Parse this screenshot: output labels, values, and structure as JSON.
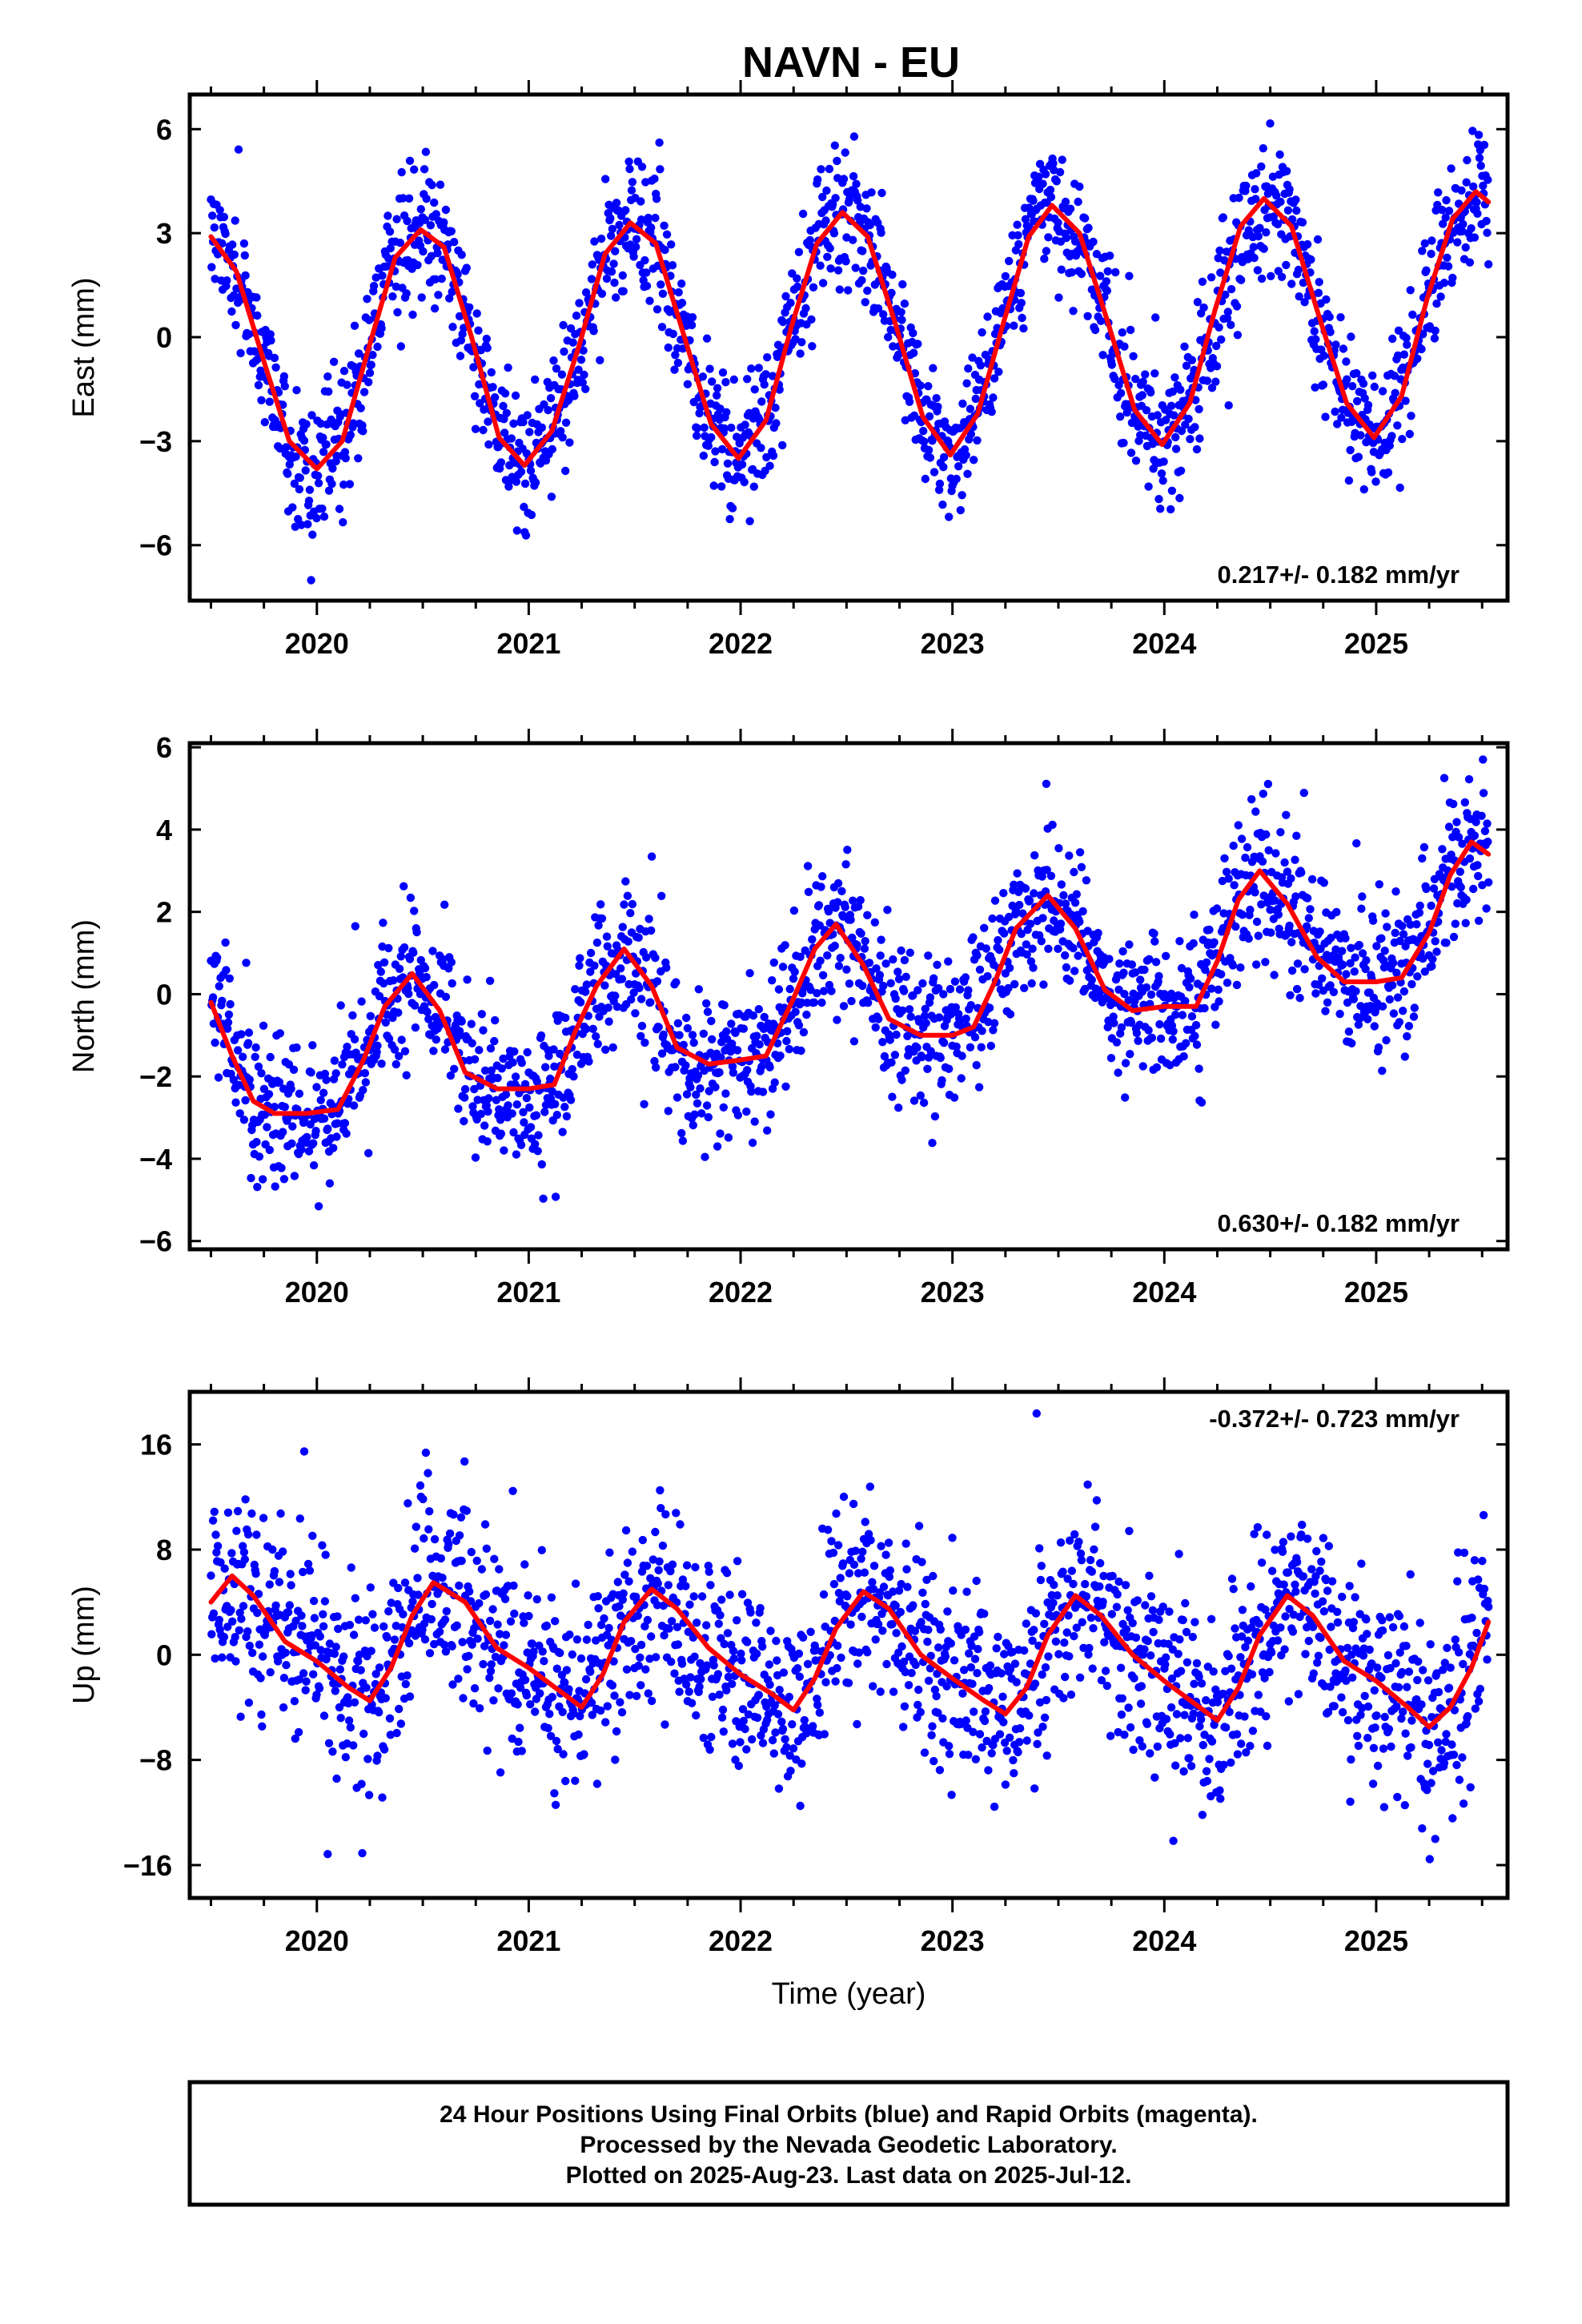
{
  "title": "NAVN - EU",
  "footer": {
    "lines": [
      "24 Hour Positions Using Final Orbits (blue) and Rapid Orbits (magenta).",
      "Processed by the Nevada Geodetic Laboratory.",
      "Plotted on 2025-Aug-23. Last data on 2025-Jul-12."
    ]
  },
  "colors": {
    "points": "#0000ff",
    "fit": "#ff0000",
    "frame": "#000000"
  },
  "chart_data": [
    {
      "type": "scatter",
      "ylabel": "East (mm)",
      "xlabel": "",
      "xlim": [
        2019.4,
        2025.62
      ],
      "ylim": [
        -7.6,
        7.0
      ],
      "yticks": [
        -6,
        -3,
        0,
        3,
        6
      ],
      "yticklabels": [
        "−6",
        "−3",
        "0",
        "3",
        "6"
      ],
      "xticks": [
        2020,
        2021,
        2022,
        2023,
        2024,
        2025
      ],
      "xticklabels": [
        "2020",
        "2021",
        "2022",
        "2023",
        "2024",
        "2025"
      ],
      "trend_text": "0.217+/- 0.182 mm/yr",
      "trend_position": "bottom-right",
      "x_range": [
        2019.5,
        2025.53
      ],
      "noise_sd": 0.95,
      "fit": {
        "name": "model",
        "x": [
          2019.5,
          2019.62,
          2019.75,
          2019.87,
          2020.0,
          2020.12,
          2020.25,
          2020.37,
          2020.49,
          2020.6,
          2020.73,
          2020.86,
          2020.98,
          2021.11,
          2021.24,
          2021.36,
          2021.48,
          2021.6,
          2021.73,
          2021.86,
          2021.99,
          2022.12,
          2022.24,
          2022.36,
          2022.48,
          2022.6,
          2022.73,
          2022.86,
          2022.99,
          2023.12,
          2023.24,
          2023.36,
          2023.47,
          2023.6,
          2023.73,
          2023.86,
          2023.99,
          2024.12,
          2024.24,
          2024.36,
          2024.47,
          2024.6,
          2024.73,
          2024.86,
          2024.99,
          2025.12,
          2025.24,
          2025.36,
          2025.47,
          2025.53
        ],
        "y": [
          2.9,
          1.9,
          -0.7,
          -3.0,
          -3.8,
          -3.0,
          -0.2,
          2.3,
          3.1,
          2.6,
          0.0,
          -2.9,
          -3.7,
          -2.7,
          -0.2,
          2.4,
          3.3,
          2.7,
          0.1,
          -2.5,
          -3.5,
          -2.4,
          0.3,
          2.7,
          3.6,
          2.9,
          0.4,
          -2.3,
          -3.4,
          -2.2,
          0.4,
          2.9,
          3.8,
          3.0,
          0.5,
          -2.1,
          -3.1,
          -1.9,
          0.8,
          3.2,
          4.0,
          3.2,
          0.6,
          -1.9,
          -2.9,
          -1.7,
          1.1,
          3.4,
          4.2,
          3.9
        ]
      }
    },
    {
      "type": "scatter",
      "ylabel": "North (mm)",
      "xlabel": "",
      "xlim": [
        2019.4,
        2025.62
      ],
      "ylim": [
        -6.2,
        6.1
      ],
      "yticks": [
        -6,
        -4,
        -2,
        0,
        2,
        4,
        6
      ],
      "yticklabels": [
        "−6",
        "−4",
        "−2",
        "0",
        "2",
        "4",
        "6"
      ],
      "xticks": [
        2020,
        2021,
        2022,
        2023,
        2024,
        2025
      ],
      "xticklabels": [
        "2020",
        "2021",
        "2022",
        "2023",
        "2024",
        "2025"
      ],
      "trend_text": "0.630+/- 0.182 mm/yr",
      "trend_position": "bottom-right",
      "x_range": [
        2019.5,
        2025.53
      ],
      "noise_sd": 0.9,
      "fit": {
        "name": "model",
        "x": [
          2019.5,
          2019.6,
          2019.7,
          2019.8,
          2019.95,
          2020.1,
          2020.22,
          2020.32,
          2020.45,
          2020.58,
          2020.7,
          2020.85,
          2021.0,
          2021.12,
          2021.22,
          2021.32,
          2021.45,
          2021.58,
          2021.7,
          2021.85,
          2022.0,
          2022.12,
          2022.25,
          2022.35,
          2022.45,
          2022.58,
          2022.7,
          2022.85,
          2023.0,
          2023.1,
          2023.2,
          2023.3,
          2023.45,
          2023.58,
          2023.72,
          2023.85,
          2024.0,
          2024.15,
          2024.25,
          2024.35,
          2024.45,
          2024.58,
          2024.72,
          2024.85,
          2025.0,
          2025.12,
          2025.25,
          2025.35,
          2025.45,
          2025.53
        ],
        "y": [
          -0.2,
          -1.5,
          -2.6,
          -2.9,
          -2.9,
          -2.8,
          -1.6,
          -0.3,
          0.5,
          -0.4,
          -1.9,
          -2.3,
          -2.3,
          -2.2,
          -0.9,
          0.2,
          1.1,
          0.2,
          -1.3,
          -1.7,
          -1.6,
          -1.5,
          -0.1,
          1.1,
          1.7,
          0.7,
          -0.6,
          -1.0,
          -1.0,
          -0.8,
          0.3,
          1.6,
          2.4,
          1.6,
          0.1,
          -0.4,
          -0.3,
          -0.3,
          0.8,
          2.3,
          3.0,
          2.2,
          0.9,
          0.3,
          0.3,
          0.4,
          1.5,
          2.9,
          3.7,
          3.4
        ]
      }
    },
    {
      "type": "scatter",
      "ylabel": "Up (mm)",
      "xlabel": "Time (year)",
      "xlim": [
        2019.4,
        2025.62
      ],
      "ylim": [
        -18.5,
        20.0
      ],
      "yticks": [
        -16,
        -8,
        0,
        8,
        16
      ],
      "yticklabels": [
        "−16",
        "−8",
        "0",
        "8",
        "16"
      ],
      "xticks": [
        2020,
        2021,
        2022,
        2023,
        2024,
        2025
      ],
      "xticklabels": [
        "2020",
        "2021",
        "2022",
        "2023",
        "2024",
        "2025"
      ],
      "trend_text": "-0.372+/- 0.723 mm/yr",
      "trend_position": "top-right",
      "x_range": [
        2019.5,
        2025.53
      ],
      "noise_sd": 3.6,
      "fit": {
        "name": "model",
        "x": [
          2019.5,
          2019.6,
          2019.7,
          2019.85,
          2020.0,
          2020.15,
          2020.25,
          2020.35,
          2020.45,
          2020.55,
          2020.7,
          2020.85,
          2021.0,
          2021.15,
          2021.25,
          2021.35,
          2021.45,
          2021.58,
          2021.7,
          2021.85,
          2022.0,
          2022.15,
          2022.25,
          2022.35,
          2022.45,
          2022.58,
          2022.7,
          2022.85,
          2023.0,
          2023.15,
          2023.25,
          2023.35,
          2023.45,
          2023.58,
          2023.7,
          2023.85,
          2024.0,
          2024.15,
          2024.25,
          2024.35,
          2024.45,
          2024.58,
          2024.7,
          2024.85,
          2025.0,
          2025.15,
          2025.25,
          2025.35,
          2025.45,
          2025.53
        ],
        "y": [
          4.0,
          6.0,
          4.5,
          1.0,
          -0.5,
          -2.5,
          -3.5,
          -1.0,
          3.0,
          5.5,
          4.0,
          0.5,
          -1.0,
          -2.8,
          -4.0,
          -1.5,
          2.5,
          5.0,
          3.5,
          0.5,
          -1.5,
          -3.0,
          -4.2,
          -1.8,
          2.0,
          4.8,
          3.5,
          0.0,
          -1.8,
          -3.5,
          -4.5,
          -2.5,
          1.5,
          4.5,
          3.0,
          0.0,
          -2.0,
          -3.8,
          -5.0,
          -2.5,
          1.5,
          4.5,
          3.0,
          -0.5,
          -2.0,
          -4.0,
          -5.5,
          -4.0,
          -1.0,
          2.5
        ]
      }
    }
  ]
}
